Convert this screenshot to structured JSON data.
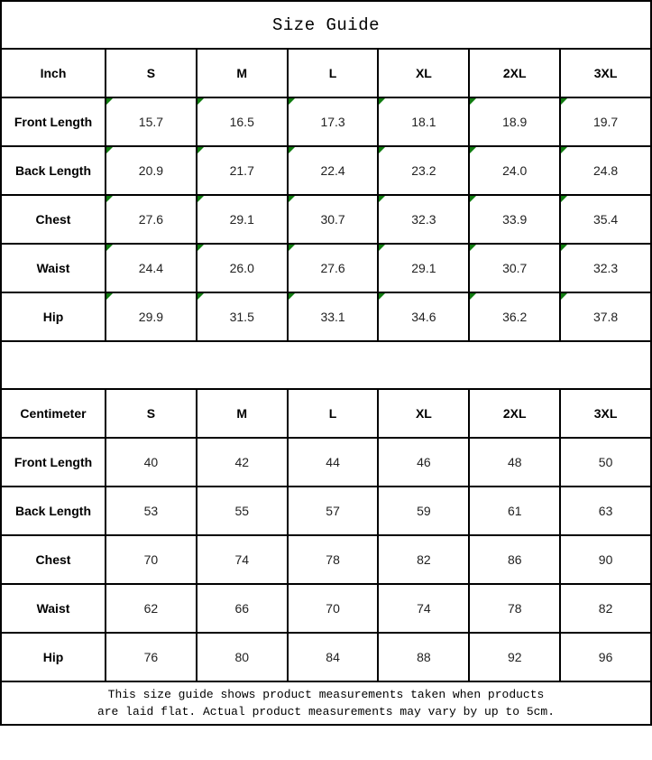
{
  "title": "Size Guide",
  "colors": {
    "border": "#000000",
    "flag_green": "#107c10",
    "background": "#ffffff",
    "text": "#000000"
  },
  "inch": {
    "header": [
      "Inch",
      "S",
      "M",
      "L",
      "XL",
      "2XL",
      "3XL"
    ],
    "rows": [
      {
        "label": "Front Length",
        "values": [
          "15.7",
          "16.5",
          "17.3",
          "18.1",
          "18.9",
          "19.7"
        ]
      },
      {
        "label": "Back Length",
        "values": [
          "20.9",
          "21.7",
          "22.4",
          "23.2",
          "24.0",
          "24.8"
        ]
      },
      {
        "label": "Chest",
        "values": [
          "27.6",
          "29.1",
          "30.7",
          "32.3",
          "33.9",
          "35.4"
        ]
      },
      {
        "label": "Waist",
        "values": [
          "24.4",
          "26.0",
          "27.6",
          "29.1",
          "30.7",
          "32.3"
        ]
      },
      {
        "label": "Hip",
        "values": [
          "29.9",
          "31.5",
          "33.1",
          "34.6",
          "36.2",
          "37.8"
        ]
      }
    ]
  },
  "cm": {
    "header": [
      "Centimeter",
      "S",
      "M",
      "L",
      "XL",
      "2XL",
      "3XL"
    ],
    "rows": [
      {
        "label": "Front Length",
        "values": [
          "40",
          "42",
          "44",
          "46",
          "48",
          "50"
        ]
      },
      {
        "label": "Back Length",
        "values": [
          "53",
          "55",
          "57",
          "59",
          "61",
          "63"
        ]
      },
      {
        "label": "Chest",
        "values": [
          "70",
          "74",
          "78",
          "82",
          "86",
          "90"
        ]
      },
      {
        "label": "Waist",
        "values": [
          "62",
          "66",
          "70",
          "74",
          "78",
          "82"
        ]
      },
      {
        "label": "Hip",
        "values": [
          "76",
          "80",
          "84",
          "88",
          "92",
          "96"
        ]
      }
    ]
  },
  "footer": {
    "line1": "This size guide shows product measurements taken when products",
    "line2": "are laid flat. Actual product measurements may vary by up to 5cm."
  }
}
